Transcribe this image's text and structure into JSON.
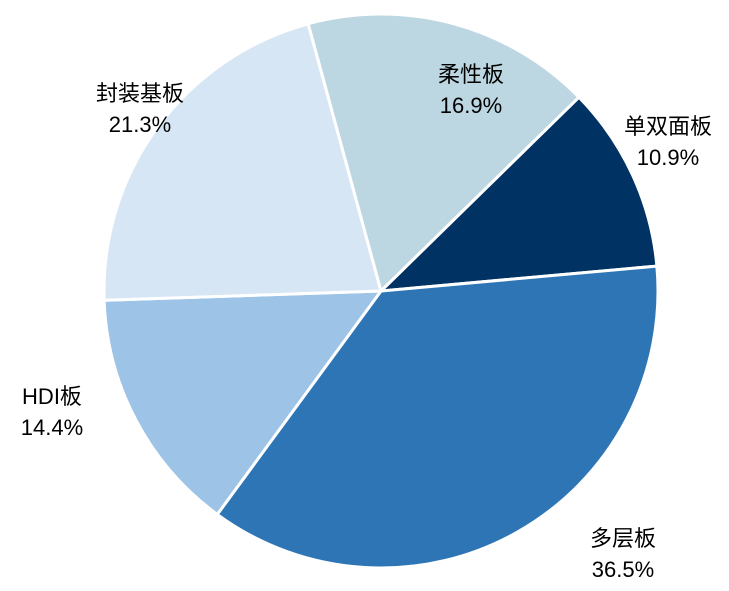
{
  "chart_data": {
    "type": "pie",
    "categories": [
      "单双面板",
      "多层板",
      "HDI板",
      "封装基板",
      "柔性板"
    ],
    "values": [
      10.9,
      36.5,
      14.4,
      21.3,
      16.9
    ],
    "value_labels": [
      "10.9%",
      "36.5%",
      "14.4%",
      "21.3%",
      "16.9%"
    ],
    "colors": [
      "#003263",
      "#2e75b6",
      "#9dc3e6",
      "#d6e6f5",
      "#bdd7e2"
    ]
  }
}
